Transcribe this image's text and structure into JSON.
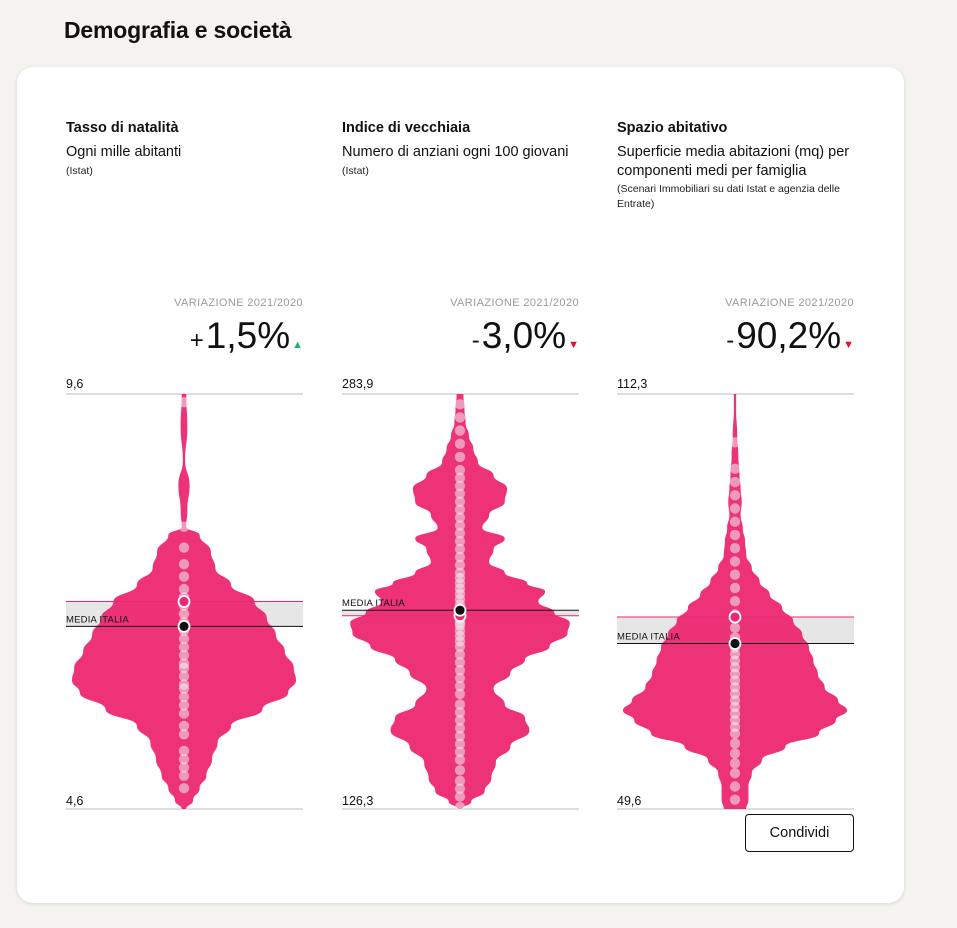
{
  "page": {
    "section_title": "Demografia e società"
  },
  "share_label": "Condividi",
  "colors": {
    "accent": "#ec2771",
    "dot_light": "#f0f0f0",
    "band": "#e6e6e6",
    "up": "#1fb46a",
    "down": "#e3122a"
  },
  "chart_data": [
    {
      "type": "violin",
      "title": "Tasso di natalità",
      "subtitle": "Ogni mille abitanti",
      "source": "(Istat)",
      "delta_label": "VARIAZIONE 2021/2020",
      "delta_sign": "+",
      "delta_value": "1,5%",
      "delta_direction": "up",
      "axis_max_label": "9,6",
      "axis_min_label": "4,6",
      "ylim": [
        4.6,
        9.6
      ],
      "media_label": "MEDIA ITALIA",
      "media_value": 6.8,
      "current_value": 7.1,
      "profile": [
        [
          4.6,
          0.02
        ],
        [
          4.7,
          0.08
        ],
        [
          4.85,
          0.14
        ],
        [
          5.0,
          0.2
        ],
        [
          5.2,
          0.25
        ],
        [
          5.4,
          0.3
        ],
        [
          5.6,
          0.42
        ],
        [
          5.8,
          0.7
        ],
        [
          6.0,
          0.93
        ],
        [
          6.15,
          1.0
        ],
        [
          6.3,
          0.98
        ],
        [
          6.5,
          0.9
        ],
        [
          6.7,
          0.82
        ],
        [
          6.9,
          0.74
        ],
        [
          7.1,
          0.63
        ],
        [
          7.3,
          0.42
        ],
        [
          7.5,
          0.28
        ],
        [
          7.7,
          0.24
        ],
        [
          7.9,
          0.14
        ],
        [
          8.0,
          0.02
        ],
        [
          8.2,
          0.03
        ],
        [
          8.5,
          0.05
        ],
        [
          8.8,
          0.01
        ],
        [
          9.2,
          0.03
        ],
        [
          9.6,
          0.02
        ]
      ],
      "points": [
        4.85,
        5.0,
        5.1,
        5.2,
        5.3,
        5.5,
        5.6,
        5.75,
        5.85,
        5.95,
        6.05,
        6.1,
        6.2,
        6.3,
        6.35,
        6.45,
        6.55,
        6.65,
        6.75,
        6.85,
        6.95,
        7.05,
        7.15,
        7.25,
        7.4,
        7.55,
        7.75,
        8.0,
        9.5
      ]
    },
    {
      "type": "violin",
      "title": "Indice di vecchiaia",
      "subtitle": "Numero di anziani ogni 100 giovani",
      "source": "(Istat)",
      "delta_label": "VARIAZIONE 2021/2020",
      "delta_sign": "-",
      "delta_value": "3,0%",
      "delta_direction": "down",
      "axis_max_label": "283,9",
      "axis_min_label": "126,3",
      "ylim": [
        126.3,
        283.9
      ],
      "media_label": "MEDIA ITALIA",
      "media_value": 201.8,
      "current_value": 199.7,
      "profile": [
        [
          126.3,
          0.02
        ],
        [
          129,
          0.1
        ],
        [
          133,
          0.22
        ],
        [
          138,
          0.28
        ],
        [
          144,
          0.32
        ],
        [
          150,
          0.45
        ],
        [
          156,
          0.62
        ],
        [
          161,
          0.58
        ],
        [
          166,
          0.4
        ],
        [
          172,
          0.3
        ],
        [
          178,
          0.45
        ],
        [
          183,
          0.58
        ],
        [
          188,
          0.8
        ],
        [
          193,
          0.96
        ],
        [
          197,
          0.98
        ],
        [
          201,
          0.84
        ],
        [
          205,
          0.7
        ],
        [
          209,
          0.76
        ],
        [
          212,
          0.6
        ],
        [
          216,
          0.4
        ],
        [
          220,
          0.26
        ],
        [
          225,
          0.3
        ],
        [
          229,
          0.4
        ],
        [
          233,
          0.2
        ],
        [
          238,
          0.26
        ],
        [
          243,
          0.4
        ],
        [
          248,
          0.42
        ],
        [
          253,
          0.3
        ],
        [
          258,
          0.16
        ],
        [
          263,
          0.12
        ],
        [
          268,
          0.08
        ],
        [
          273,
          0.05
        ],
        [
          278,
          0.04
        ],
        [
          283.9,
          0.03
        ]
      ],
      "points": [
        127,
        131,
        134,
        137,
        141,
        145,
        148,
        151,
        154,
        157,
        160,
        163,
        166,
        170,
        173,
        176,
        179,
        182,
        185,
        188,
        190,
        192,
        194,
        196,
        197,
        198.5,
        200,
        202,
        204,
        206,
        208,
        210,
        212,
        214,
        216,
        219,
        222,
        225,
        228,
        231,
        234,
        237,
        240,
        243,
        246,
        249,
        252,
        255,
        260,
        265,
        270,
        275,
        280
      ]
    },
    {
      "type": "violin",
      "title": "Spazio abitativo",
      "subtitle": "Superficie media abitazioni (mq) per componenti medi per famiglia",
      "source": "(Scenari Immobiliari su dati Istat e agenzia delle Entrate)",
      "delta_label": "VARIAZIONE 2021/2020",
      "delta_sign": "-",
      "delta_value": "90,2%",
      "delta_direction": "down",
      "axis_max_label": "112,3",
      "axis_min_label": "49,6",
      "ylim": [
        49.6,
        112.3
      ],
      "media_label": "MEDIA ITALIA",
      "media_value": 74.6,
      "current_value": 78.6,
      "profile": [
        [
          49.6,
          0.1
        ],
        [
          51,
          0.12
        ],
        [
          53,
          0.12
        ],
        [
          55,
          0.15
        ],
        [
          57,
          0.24
        ],
        [
          59,
          0.45
        ],
        [
          61,
          0.75
        ],
        [
          63,
          0.9
        ],
        [
          64.5,
          1.0
        ],
        [
          66,
          0.92
        ],
        [
          68,
          0.8
        ],
        [
          70,
          0.74
        ],
        [
          72,
          0.7
        ],
        [
          74,
          0.66
        ],
        [
          76,
          0.6
        ],
        [
          78,
          0.52
        ],
        [
          80,
          0.42
        ],
        [
          82,
          0.31
        ],
        [
          84,
          0.22
        ],
        [
          86,
          0.15
        ],
        [
          88,
          0.1
        ],
        [
          90,
          0.09
        ],
        [
          92,
          0.07
        ],
        [
          94,
          0.05
        ],
        [
          96,
          0.06
        ],
        [
          98,
          0.05
        ],
        [
          100,
          0.04
        ],
        [
          103,
          0.03
        ],
        [
          106,
          0.02
        ],
        [
          110,
          0.01
        ],
        [
          112.3,
          0.01
        ]
      ],
      "points": [
        51,
        53,
        55,
        56.5,
        58,
        59.5,
        61,
        62,
        63,
        64,
        65,
        66,
        67,
        68,
        69,
        70,
        71,
        72,
        73,
        74,
        75.5,
        77,
        79,
        81,
        83,
        85,
        87,
        89,
        91,
        93,
        95,
        97,
        99,
        101,
        105
      ]
    }
  ]
}
